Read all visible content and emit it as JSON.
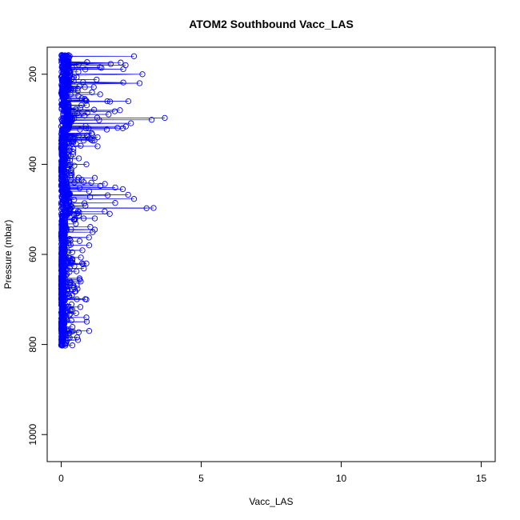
{
  "chart_data": {
    "type": "scatter",
    "title": "ATOM2 Southbound Vacc_LAS",
    "xlabel": "Vacc_LAS",
    "ylabel": "Pressure (mbar)",
    "xlim": [
      -0.5,
      15.5
    ],
    "ylim": [
      1060,
      140
    ],
    "y_reversed": true,
    "x_ticks": [
      0,
      5,
      10,
      15
    ],
    "y_ticks": [
      200,
      400,
      600,
      800,
      1000
    ],
    "grid": false,
    "marker": "open-circle",
    "connected": true,
    "series_color": "#0000ff",
    "profile_envelope": [
      {
        "p": 160,
        "x_max": 2.6
      },
      {
        "p": 180,
        "x_max": 2.3
      },
      {
        "p": 200,
        "x_max": 2.9
      },
      {
        "p": 220,
        "x_max": 2.8
      },
      {
        "p": 240,
        "x_max": 1.1
      },
      {
        "p": 260,
        "x_max": 2.4
      },
      {
        "p": 280,
        "x_max": 2.1
      },
      {
        "p": 297,
        "x_max": 3.7
      },
      {
        "p": 320,
        "x_max": 2.2
      },
      {
        "p": 340,
        "x_max": 1.3
      },
      {
        "p": 360,
        "x_max": 1.3
      },
      {
        "p": 400,
        "x_max": 0.9
      },
      {
        "p": 430,
        "x_max": 1.2
      },
      {
        "p": 455,
        "x_max": 2.2
      },
      {
        "p": 477,
        "x_max": 2.6
      },
      {
        "p": 497,
        "x_max": 3.3
      },
      {
        "p": 520,
        "x_max": 1.2
      },
      {
        "p": 545,
        "x_max": 1.2
      },
      {
        "p": 580,
        "x_max": 1.0
      },
      {
        "p": 620,
        "x_max": 0.9
      },
      {
        "p": 660,
        "x_max": 0.7
      },
      {
        "p": 700,
        "x_max": 0.9
      },
      {
        "p": 740,
        "x_max": 0.9
      },
      {
        "p": 770,
        "x_max": 1.0
      },
      {
        "p": 790,
        "x_max": 0.6
      },
      {
        "p": 802,
        "x_max": 0.4
      }
    ],
    "x_min_observed": 0.0,
    "p_range_observed": [
      157,
      803
    ]
  }
}
